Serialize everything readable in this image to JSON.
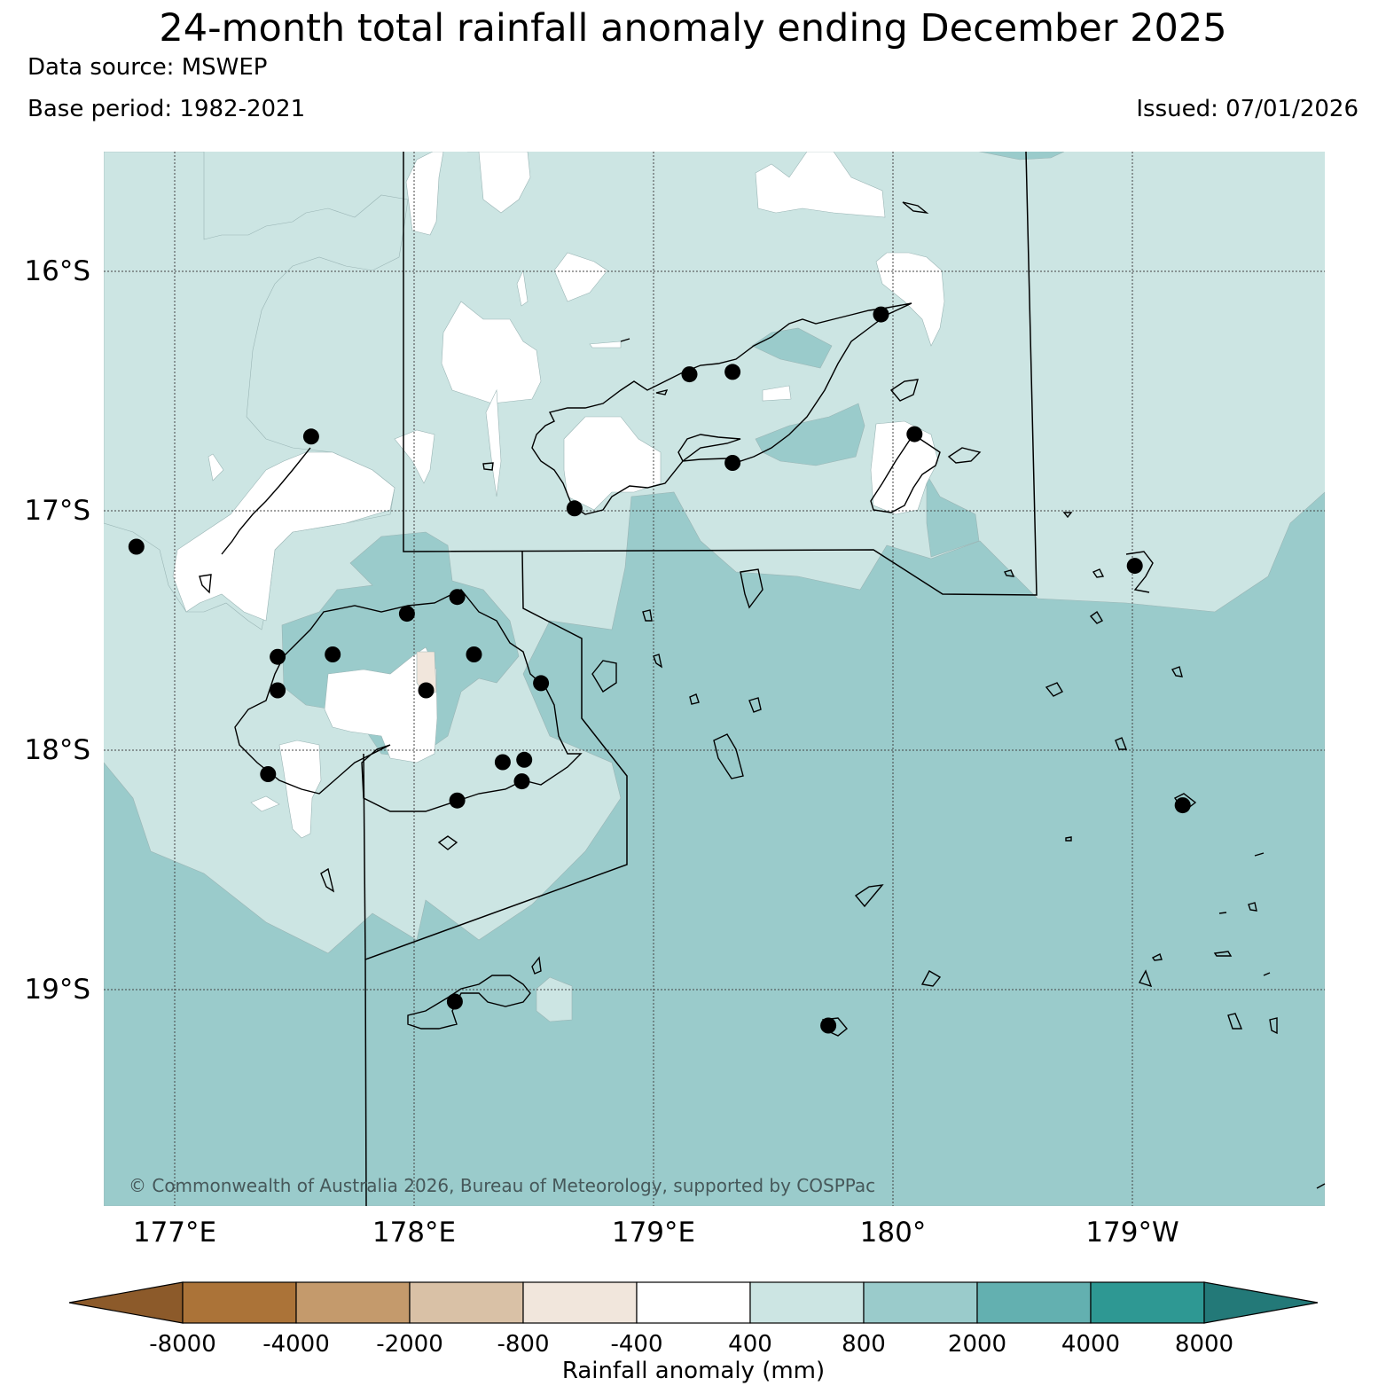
{
  "title": "24-month total rainfall anomaly ending December 2025",
  "data_source": "Data source: MSWEP",
  "base_period": "Base period: 1982-2021",
  "issued": "Issued: 07/01/2026",
  "copyright": "© Commonwealth of Australia 2026, Bureau of Meteorology, supported by COSPPac",
  "lat_labels": [
    "16°S",
    "17°S",
    "18°S",
    "19°S"
  ],
  "lon_labels": [
    "177°E",
    "178°E",
    "179°E",
    "180°",
    "179°W"
  ],
  "colorbar": {
    "label": "Rainfall anomaly (mm)",
    "ticks": [
      "-8000",
      "-4000",
      "-2000",
      "-800",
      "-400",
      "400",
      "800",
      "2000",
      "4000",
      "8000"
    ],
    "colors": [
      "#8c5a2a",
      "#ab7338",
      "#c49a6c",
      "#d9c1a6",
      "#f1e6dc",
      "#ffffff",
      "#cce5e3",
      "#9acbcb",
      "#63b0b0",
      "#2e9893",
      "#237978"
    ]
  },
  "stations": [
    [
      177.57,
      -16.69
    ],
    [
      176.84,
      -17.15
    ],
    [
      177.43,
      -17.61
    ],
    [
      177.43,
      -17.75
    ],
    [
      177.66,
      -17.6
    ],
    [
      177.97,
      -17.43
    ],
    [
      178.18,
      -17.36
    ],
    [
      178.25,
      -17.6
    ],
    [
      178.53,
      -17.72
    ],
    [
      178.05,
      -17.75
    ],
    [
      178.37,
      -18.05
    ],
    [
      178.46,
      -18.04
    ],
    [
      178.45,
      -18.13
    ],
    [
      178.18,
      -18.21
    ],
    [
      177.39,
      -18.1
    ],
    [
      178.17,
      -19.05
    ],
    [
      178.67,
      -16.99
    ],
    [
      179.15,
      -16.43
    ],
    [
      179.33,
      -16.42
    ],
    [
      179.33,
      -16.8
    ],
    [
      179.95,
      -16.18
    ],
    [
      180.09,
      -16.68
    ],
    [
      181.01,
      -17.23
    ],
    [
      181.21,
      -18.23
    ],
    [
      179.73,
      -19.15
    ]
  ]
}
